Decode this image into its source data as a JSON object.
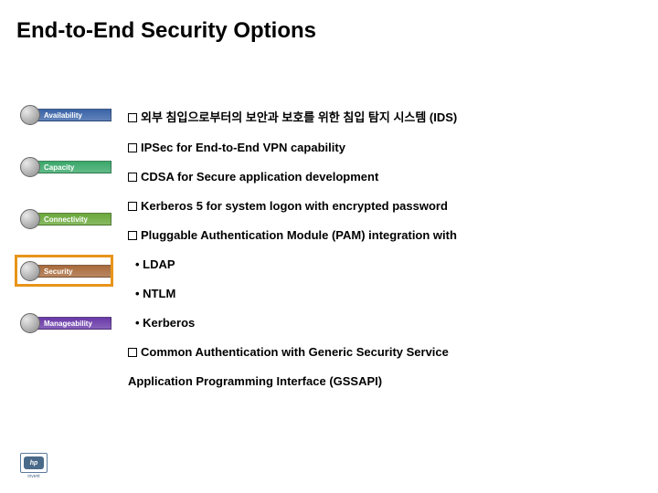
{
  "title": "End-to-End Security Options",
  "sidebar": {
    "items": [
      {
        "label": "Availability",
        "bg": "#3a64a8"
      },
      {
        "label": "Capacity",
        "bg": "#3aa86a"
      },
      {
        "label": "Connectivity",
        "bg": "#6aa83a"
      },
      {
        "label": "Security",
        "bg": "#a86a3a"
      },
      {
        "label": "Manageability",
        "bg": "#6a3aa8"
      }
    ],
    "highlight_index": 3,
    "highlight_color": "#e8941a"
  },
  "content": {
    "bullets": [
      "외부 침입으로부터의 보안과 보호를 위한 침입 탐지 시스템 (IDS)",
      "IPSec for End-to-End VPN capability",
      "CDSA  for Secure application development",
      "Kerberos 5 for system logon with encrypted password",
      "Pluggable Authentication Module (PAM) integration with"
    ],
    "subbullets": [
      "LDAP",
      "NTLM",
      "Kerberos"
    ],
    "bullets2": [
      "Common Authentication with Generic Security Service"
    ],
    "continuation": "Application Programming Interface (GSSAPI)"
  },
  "logo": {
    "text": "hp",
    "subtext": "invent"
  },
  "colors": {
    "text": "#000000",
    "background": "#ffffff"
  }
}
